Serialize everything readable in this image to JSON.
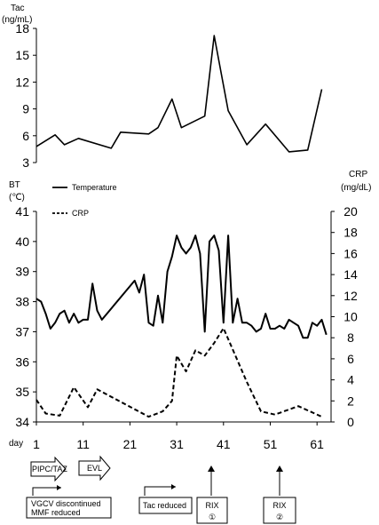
{
  "chart_data": [
    {
      "type": "line",
      "ylabel": "Tac",
      "yunit": "(ng/mL)",
      "ylim": [
        3,
        18
      ],
      "yticks": [
        "18",
        "15",
        "12",
        "9",
        "6",
        "3"
      ],
      "series": [
        {
          "name": "Tac",
          "x": [
            1,
            5,
            7,
            10,
            17,
            19,
            25,
            27,
            30,
            32,
            37,
            39,
            42,
            46,
            50,
            55,
            59,
            62
          ],
          "y": [
            4.8,
            6.1,
            5.0,
            5.7,
            4.6,
            6.4,
            6.2,
            6.9,
            10.1,
            6.9,
            8.2,
            17.2,
            8.8,
            5.0,
            7.3,
            4.2,
            4.4,
            11.2
          ]
        }
      ]
    },
    {
      "type": "line",
      "ylabel": "BT",
      "yunit": "(℃)",
      "ylim": [
        34,
        41
      ],
      "yticks": [
        "41",
        "40",
        "39",
        "38",
        "37",
        "36",
        "35",
        "34"
      ],
      "y2label": "CRP",
      "y2unit": "(mg/dL)",
      "y2lim": [
        0,
        20
      ],
      "y2ticks": [
        "20",
        "18",
        "16",
        "14",
        "12",
        "10",
        "8",
        "6",
        "4",
        "2",
        "0"
      ],
      "xlabel": "day",
      "xticks": [
        "1",
        "11",
        "21",
        "31",
        "41",
        "51",
        "61"
      ],
      "legend": [
        "Temperature",
        "CRP"
      ],
      "series": [
        {
          "name": "Temperature",
          "x": [
            1,
            2,
            3,
            4,
            5,
            6,
            7,
            8,
            9,
            10,
            11,
            12,
            13,
            14,
            15,
            22,
            23,
            24,
            25,
            26,
            27,
            28,
            29,
            30,
            31,
            32,
            33,
            34,
            35,
            36,
            37,
            38,
            39,
            40,
            41,
            42,
            43,
            44,
            45,
            46,
            47,
            48,
            49,
            50,
            51,
            52,
            53,
            54,
            55,
            56,
            57,
            58,
            59,
            60,
            61,
            62,
            63
          ],
          "y": [
            38.1,
            38.0,
            37.6,
            37.1,
            37.3,
            37.6,
            37.7,
            37.3,
            37.6,
            37.3,
            37.4,
            37.4,
            38.6,
            37.7,
            37.4,
            38.7,
            38.3,
            38.9,
            37.3,
            37.2,
            38.2,
            37.3,
            39.0,
            39.5,
            40.2,
            39.8,
            39.6,
            39.8,
            40.2,
            39.6,
            37.0,
            40.0,
            40.2,
            39.7,
            37.3,
            40.2,
            37.3,
            38.1,
            37.3,
            37.3,
            37.2,
            37.0,
            37.1,
            37.6,
            37.1,
            37.1,
            37.2,
            37.1,
            37.4,
            37.3,
            37.2,
            36.8,
            36.8,
            37.3,
            37.2,
            37.4,
            36.9
          ]
        },
        {
          "name": "CRP",
          "x": [
            1,
            3,
            6,
            9,
            12,
            14,
            25,
            28,
            30,
            31,
            33,
            35,
            37,
            39,
            41,
            46,
            49,
            52,
            57,
            62
          ],
          "y": [
            2.1,
            0.8,
            0.6,
            3.3,
            1.4,
            3.1,
            0.5,
            1.0,
            2.0,
            6.3,
            4.8,
            6.8,
            6.3,
            7.5,
            8.9,
            3.8,
            1.0,
            0.7,
            1.5,
            0.5
          ]
        }
      ]
    }
  ],
  "annotations": {
    "pipc": "PIPC/TAZ",
    "evl": "EVL",
    "vgcv_line1": "VGCV discontinued",
    "vgcv_line2": "MMF reduced",
    "tac_reduced": "Tac reduced",
    "rix1_line1": "RIX",
    "rix1_line2": "①",
    "rix2_line1": "RIX",
    "rix2_line2": "②"
  }
}
